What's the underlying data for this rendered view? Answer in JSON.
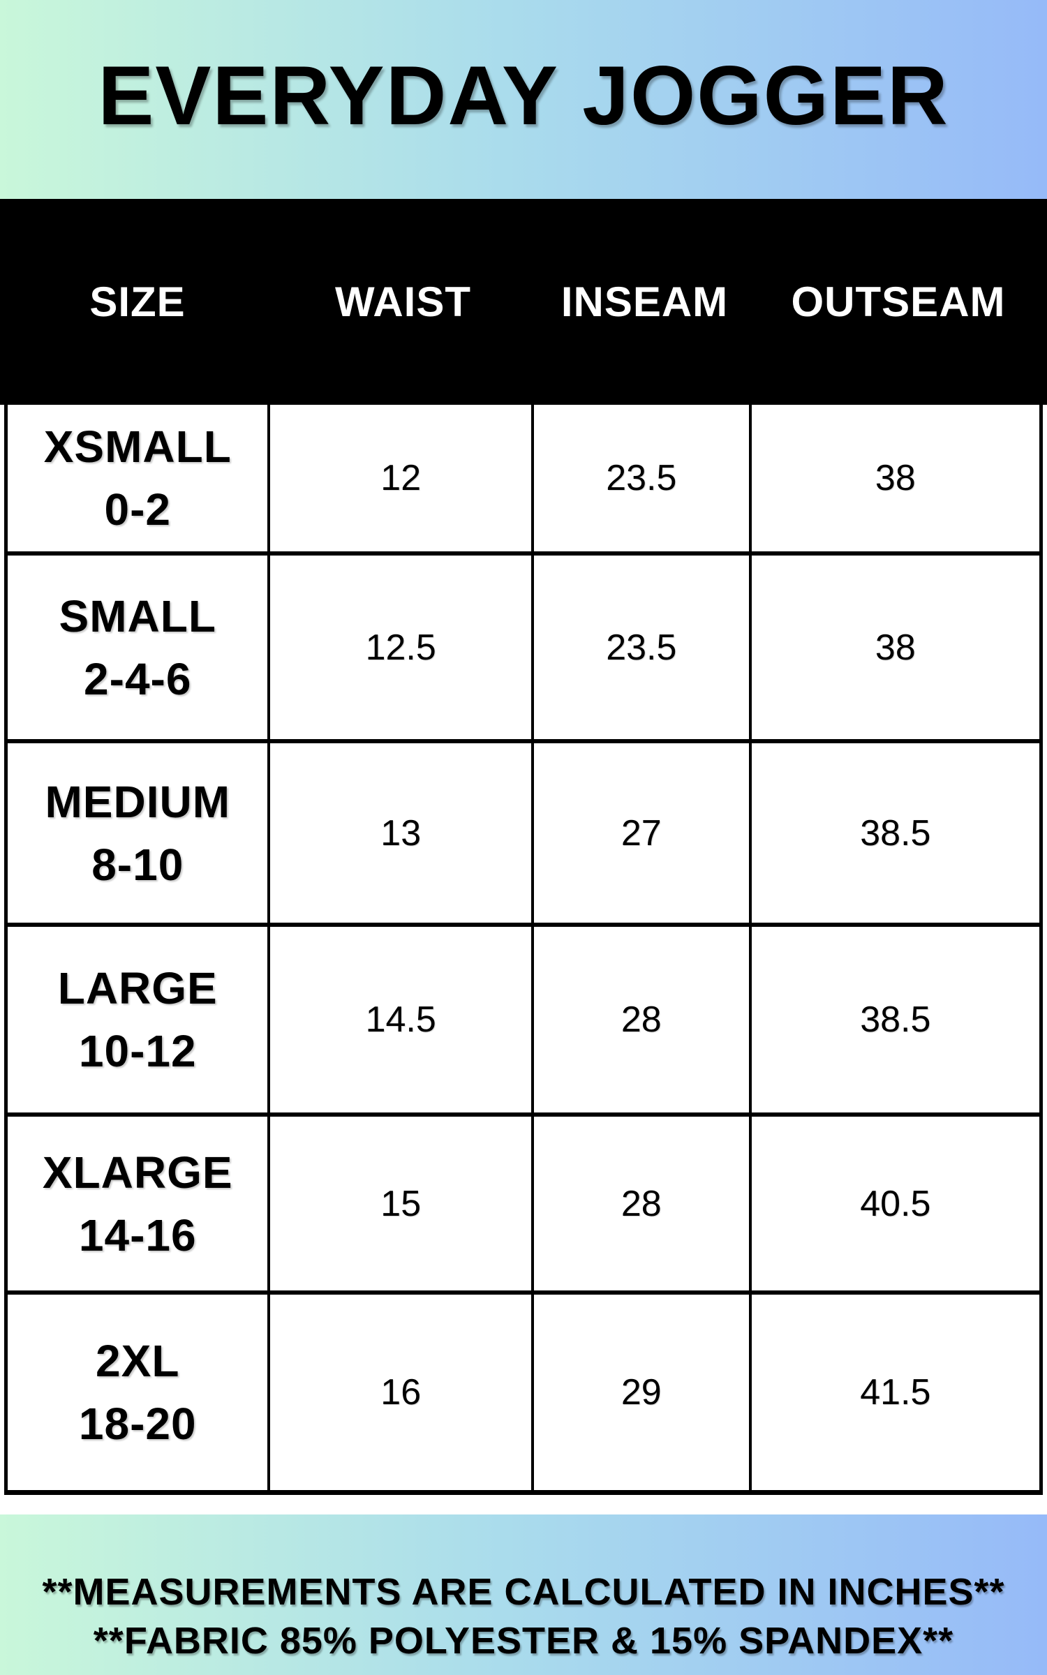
{
  "title": "EVERYDAY JOGGER",
  "table": {
    "columns": [
      "SIZE",
      "WAIST",
      "INSEAM",
      "OUTSEAM"
    ],
    "rows": [
      {
        "size": "XSMALL",
        "range": "0-2",
        "waist": "12",
        "inseam": "23.5",
        "outseam": "38"
      },
      {
        "size": "SMALL",
        "range": "2-4-6",
        "waist": "12.5",
        "inseam": "23.5",
        "outseam": "38"
      },
      {
        "size": "MEDIUM",
        "range": "8-10",
        "waist": "13",
        "inseam": "27",
        "outseam": "38.5"
      },
      {
        "size": "LARGE",
        "range": "10-12",
        "waist": "14.5",
        "inseam": "28",
        "outseam": "38.5"
      },
      {
        "size": "XLARGE",
        "range": "14-16",
        "waist": "15",
        "inseam": "28",
        "outseam": "40.5"
      },
      {
        "size": "2XL",
        "range": "18-20",
        "waist": "16",
        "inseam": "29",
        "outseam": "41.5"
      }
    ]
  },
  "footer": {
    "line1": "**MEASUREMENTS ARE CALCULATED IN INCHES**",
    "line2": "**FABRIC 85% POLYESTER & 15% SPANDEX**"
  },
  "colors": {
    "gradient_start": "#c9f7da",
    "gradient_end": "#96baf8",
    "header_band": "#000000",
    "table_background": "#ffffff",
    "border": "#000000",
    "header_text": "#ffffff",
    "body_text": "#000000"
  },
  "chart_data": {
    "type": "table",
    "title": "EVERYDAY JOGGER",
    "columns": [
      "SIZE",
      "WAIST",
      "INSEAM",
      "OUTSEAM"
    ],
    "rows": [
      [
        "XSMALL 0-2",
        12,
        23.5,
        38
      ],
      [
        "SMALL 2-4-6",
        12.5,
        23.5,
        38
      ],
      [
        "MEDIUM 8-10",
        13,
        27,
        38.5
      ],
      [
        "LARGE 10-12",
        14.5,
        28,
        38.5
      ],
      [
        "XLARGE 14-16",
        15,
        28,
        40.5
      ],
      [
        "2XL 18-20",
        16,
        29,
        41.5
      ]
    ],
    "units": "inches",
    "notes": [
      "**MEASUREMENTS ARE CALCULATED IN INCHES**",
      "**FABRIC 85% POLYESTER & 15% SPANDEX**"
    ]
  }
}
